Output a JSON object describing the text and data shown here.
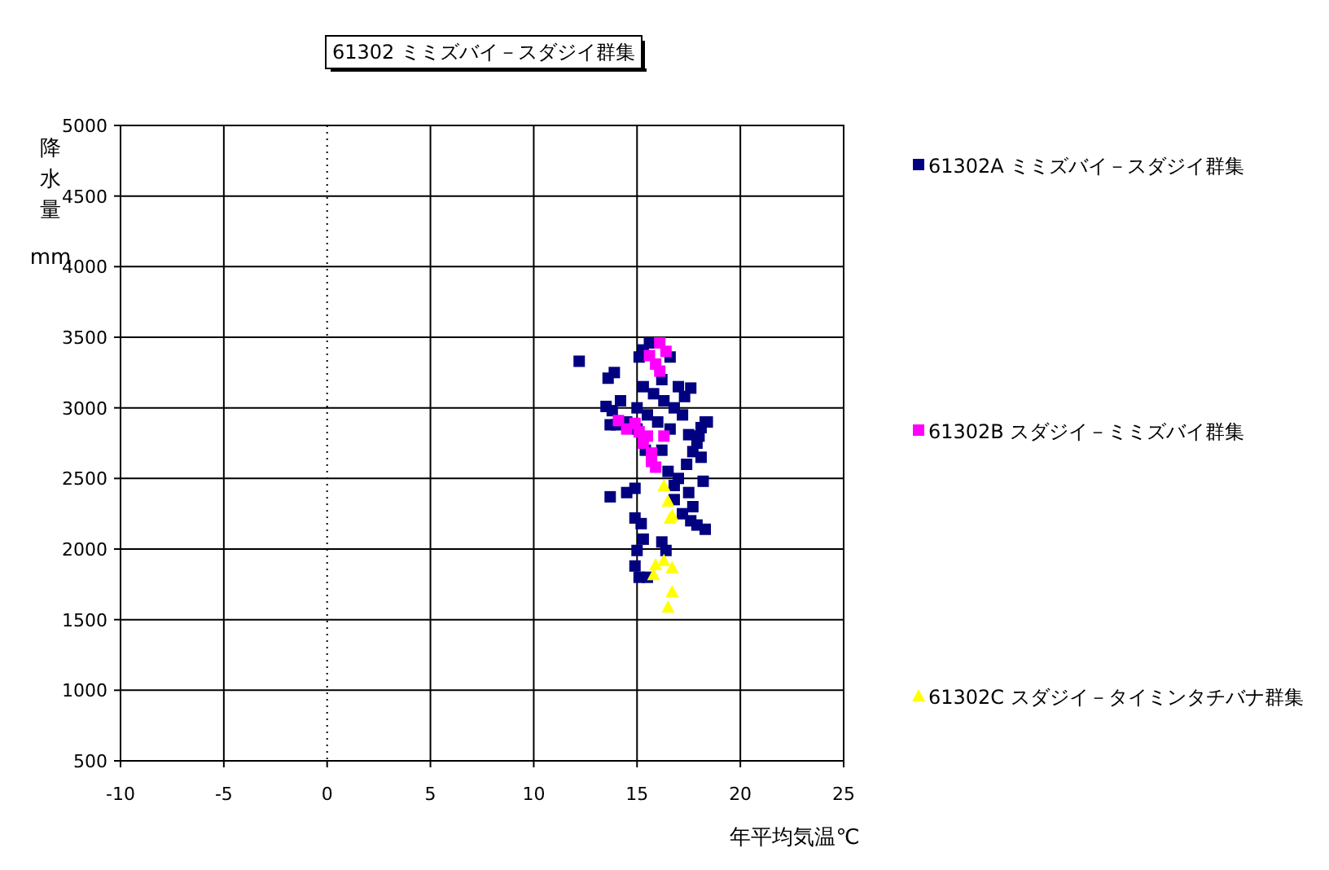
{
  "chart_data": {
    "type": "scatter",
    "title": "61302 ミミズバイ－スダジイ群集",
    "xlabel": "年平均気温℃",
    "ylabel": "降水量 mm",
    "xlim": [
      -10,
      25
    ],
    "xticks": [
      -10,
      -5,
      0,
      5,
      10,
      15,
      20,
      25
    ],
    "ylim": [
      500,
      5000
    ],
    "yticks": [
      500,
      1000,
      1500,
      2000,
      2500,
      3000,
      3500,
      4000,
      4500,
      5000
    ],
    "grid": true,
    "legend": "right",
    "ref_lines": [
      {
        "axis": "x",
        "value": 0,
        "line_style": "dotted",
        "color": "#000000"
      }
    ],
    "series": [
      {
        "name": "61302A ミミズバイ－スダジイ群集",
        "color": "#000080",
        "marker": "square",
        "x": [
          12.2,
          13.6,
          13.9,
          15.1,
          15.6,
          15.3,
          16.6,
          13.5,
          17.6,
          17.3,
          18.1,
          18.4,
          13.7,
          17.5,
          17.9,
          17.7,
          16.2,
          14.2,
          13.8,
          14.5,
          14.0,
          15.3,
          15.8,
          16.3,
          16.8,
          15.0,
          15.5,
          16.0,
          16.6,
          17.2,
          18.0,
          17.0,
          17.4,
          18.1,
          17.0,
          16.8,
          17.5,
          18.2,
          17.7,
          18.3,
          17.9,
          17.2,
          16.8,
          16.5,
          16.2,
          15.4,
          15.0,
          13.7,
          14.5,
          14.9,
          14.9,
          15.2,
          15.3,
          15.0,
          16.2,
          16.4,
          14.9,
          15.1,
          15.5,
          18.3,
          17.6
        ],
        "values": [
          3330,
          3210,
          3250,
          3360,
          3460,
          3410,
          3360,
          3010,
          3140,
          3080,
          2860,
          2900,
          2880,
          2810,
          2750,
          2690,
          3200,
          3050,
          2980,
          2900,
          2880,
          3150,
          3100,
          3050,
          3000,
          3000,
          2950,
          2900,
          2850,
          2950,
          2800,
          3150,
          2600,
          2650,
          2500,
          2450,
          2400,
          2480,
          2300,
          2140,
          2170,
          2250,
          2350,
          2550,
          2700,
          2700,
          2850,
          2370,
          2400,
          2430,
          2220,
          2180,
          2070,
          1990,
          2050,
          1990,
          1880,
          1800,
          1800,
          2900,
          2200
        ]
      },
      {
        "name": "61302B スダジイ－ミミズバイ群集",
        "color": "#ff00ff",
        "marker": "square",
        "x": [
          16.1,
          16.4,
          15.6,
          15.9,
          16.1,
          14.1,
          14.5,
          14.9,
          15.1,
          15.5,
          15.3,
          16.3,
          15.7,
          15.7,
          15.9
        ],
        "values": [
          3460,
          3400,
          3370,
          3310,
          3260,
          2910,
          2850,
          2890,
          2830,
          2800,
          2750,
          2800,
          2680,
          2620,
          2580
        ]
      },
      {
        "name": "61302C スダジイ－タイミンタチバナ群集",
        "color": "#ffff00",
        "marker": "triangle",
        "x": [
          16.3,
          16.5,
          16.6,
          16.7,
          15.9,
          16.3,
          16.7,
          15.8,
          16.7,
          16.5
        ],
        "values": [
          2450,
          2340,
          2220,
          2240,
          1890,
          1920,
          1870,
          1820,
          1700,
          1590
        ]
      }
    ]
  }
}
